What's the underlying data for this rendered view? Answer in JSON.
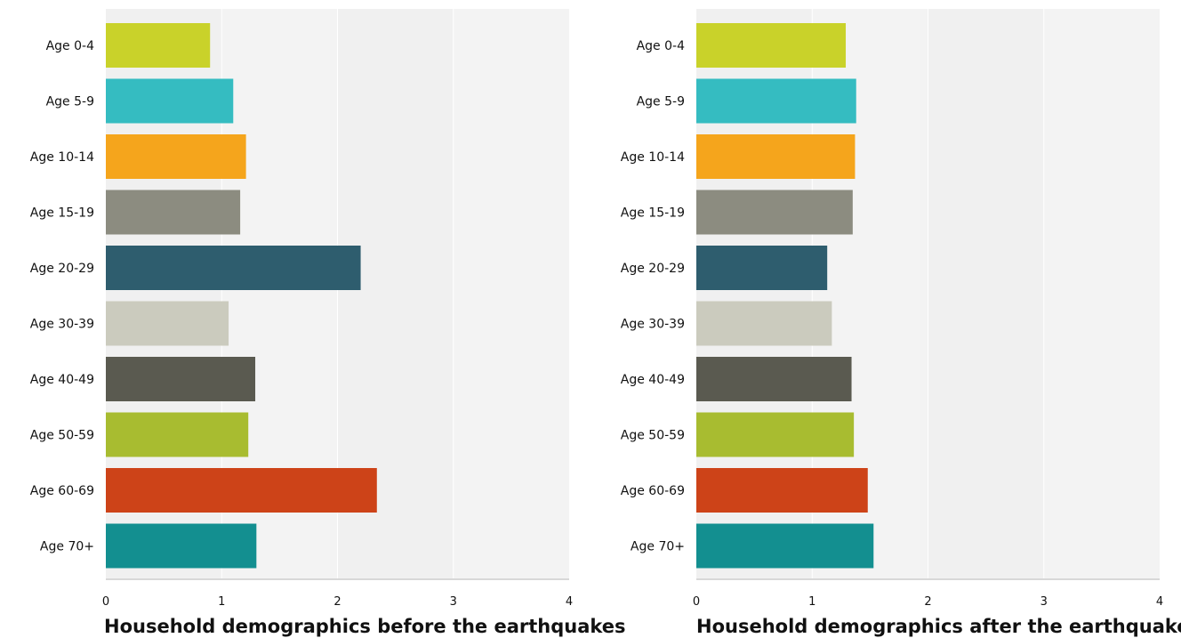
{
  "chart_data": [
    {
      "type": "bar",
      "orientation": "horizontal",
      "title": "Household demographics before the earthquakes",
      "categories": [
        "Age 0-4",
        "Age 5-9",
        "Age 10-14",
        "Age 15-19",
        "Age 20-29",
        "Age 30-39",
        "Age 40-49",
        "Age 50-59",
        "Age 60-69",
        "Age 70+"
      ],
      "values": [
        0.9,
        1.1,
        1.21,
        1.16,
        2.2,
        1.06,
        1.29,
        1.23,
        2.34,
        1.3
      ],
      "colors": [
        "#c9d22a",
        "#35bcc1",
        "#f5a51c",
        "#8c8c80",
        "#2e5d6e",
        "#cbcbbe",
        "#5a5a50",
        "#a8bc30",
        "#cd4318",
        "#138f90"
      ],
      "xlim": [
        0,
        4
      ],
      "xticks": [
        "0",
        "1",
        "2",
        "3",
        "4"
      ],
      "grid": false
    },
    {
      "type": "bar",
      "orientation": "horizontal",
      "title": "Household demographics after the earthquakes",
      "categories": [
        "Age 0-4",
        "Age 5-9",
        "Age 10-14",
        "Age 15-19",
        "Age 20-29",
        "Age 30-39",
        "Age 40-49",
        "Age 50-59",
        "Age 60-69",
        "Age 70+"
      ],
      "values": [
        1.29,
        1.38,
        1.37,
        1.35,
        1.13,
        1.17,
        1.34,
        1.36,
        1.48,
        1.53
      ],
      "colors": [
        "#c9d22a",
        "#35bcc1",
        "#f5a51c",
        "#8c8c80",
        "#2e5d6e",
        "#cbcbbe",
        "#5a5a50",
        "#a8bc30",
        "#cd4318",
        "#138f90"
      ],
      "xlim": [
        0,
        4
      ],
      "xticks": [
        "0",
        "1",
        "2",
        "3",
        "4"
      ],
      "grid": false
    }
  ]
}
